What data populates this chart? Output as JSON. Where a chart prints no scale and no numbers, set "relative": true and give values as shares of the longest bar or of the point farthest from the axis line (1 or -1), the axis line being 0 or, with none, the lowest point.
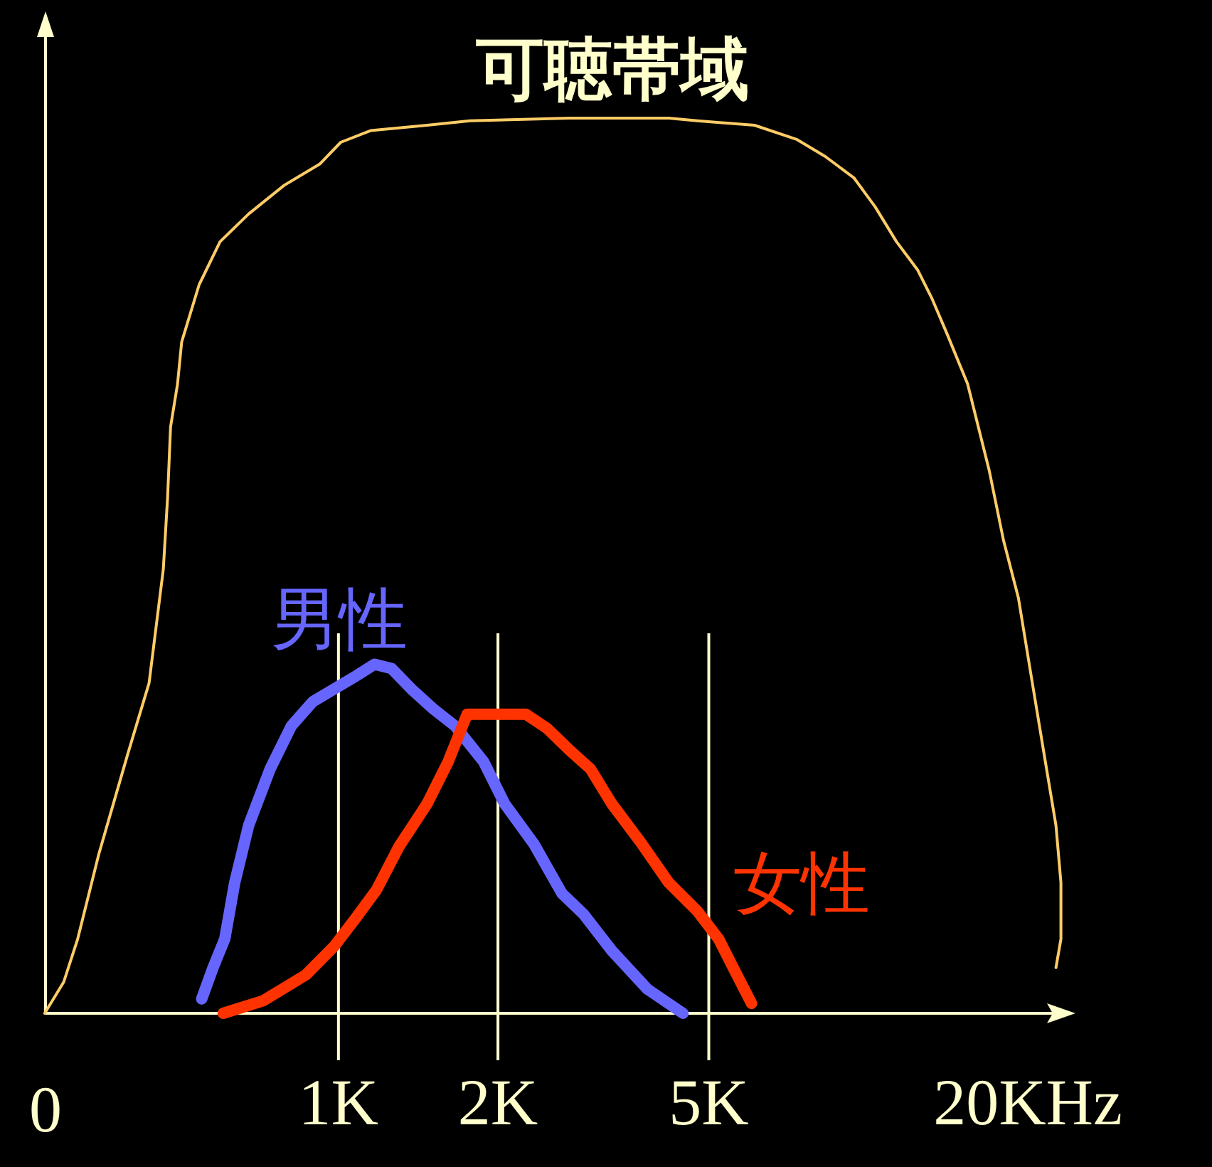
{
  "chart_data": {
    "type": "line",
    "relative": true,
    "log": "x",
    "grid": false,
    "legend": false,
    "marker": "none",
    "line_style": "solid",
    "xlim": [
      0,
      24
    ],
    "xticks": [
      0,
      {
        "value": 1,
        "label": "1K"
      },
      {
        "value": 2,
        "label": "2K"
      },
      {
        "value": 5,
        "label": "5K"
      },
      {
        "value": 20,
        "label": "20KHz"
      }
    ],
    "ref_lines": [
      {
        "axis": "x",
        "value": 1,
        "color": "#ffffcc"
      },
      {
        "axis": "x",
        "value": 2,
        "color": "#ffffcc"
      },
      {
        "axis": "x",
        "value": 5,
        "color": "#ffffcc"
      }
    ],
    "series": [
      {
        "name": "可聴帯域",
        "color": "#ffcc66",
        "x": [
          0.279,
          0.303,
          0.322,
          0.353,
          0.4,
          0.439,
          0.467,
          0.476,
          0.482,
          0.497,
          0.506,
          0.546,
          0.598,
          0.677,
          0.79,
          0.923,
          1.01,
          1.15,
          1.3,
          1.47,
          1.77,
          2.73,
          4.2,
          4.76,
          6.1,
          7.34,
          8.3,
          9.4,
          10.3,
          11.3,
          12.4,
          13.2,
          14.1,
          15.4,
          16.9,
          18,
          19.2,
          20.4,
          21.7,
          22.6,
          23.1,
          23.1,
          22.6
        ],
        "values": [
          0,
          0.035,
          0.083,
          0.178,
          0.289,
          0.369,
          0.496,
          0.576,
          0.655,
          0.703,
          0.75,
          0.814,
          0.862,
          0.893,
          0.925,
          0.949,
          0.973,
          0.986,
          0.989,
          0.992,
          0.997,
          1,
          1,
          0.997,
          0.992,
          0.976,
          0.957,
          0.933,
          0.901,
          0.862,
          0.83,
          0.798,
          0.758,
          0.703,
          0.607,
          0.528,
          0.464,
          0.369,
          0.273,
          0.21,
          0.146,
          0.083,
          0.051
        ]
      },
      {
        "name": "男性",
        "color": "#6666ff",
        "x": [
          0.552,
          0.58,
          0.61,
          0.637,
          0.677,
          0.743,
          0.815,
          0.894,
          1.08,
          1.17,
          1.26,
          1.38,
          1.51,
          1.66,
          1.88,
          2.06,
          2.34,
          2.64,
          2.9,
          3.28,
          3.83,
          4.47
        ],
        "values": [
          0.016,
          0.051,
          0.083,
          0.146,
          0.21,
          0.273,
          0.321,
          0.348,
          0.377,
          0.39,
          0.385,
          0.361,
          0.34,
          0.321,
          0.281,
          0.234,
          0.189,
          0.134,
          0.111,
          0.07,
          0.027,
          0
        ]
      },
      {
        "name": "女性",
        "color": "#ff3300",
        "x": [
          0.606,
          0.721,
          0.868,
          0.982,
          1.08,
          1.18,
          1.3,
          1.47,
          1.61,
          1.75,
          2.26,
          2.48,
          2.73,
          2.99,
          3.28,
          3.72,
          4.2,
          4.76,
          5.22,
          5.56,
          6.02
        ],
        "values": [
          0,
          0.014,
          0.043,
          0.075,
          0.107,
          0.138,
          0.186,
          0.234,
          0.281,
          0.334,
          0.334,
          0.318,
          0.294,
          0.273,
          0.234,
          0.191,
          0.146,
          0.114,
          0.083,
          0.051,
          0.011
        ]
      }
    ]
  }
}
